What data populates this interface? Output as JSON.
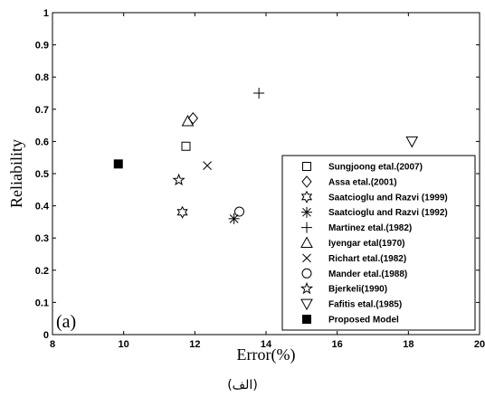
{
  "chart_data": {
    "type": "scatter",
    "panel_label": "(a)",
    "xlabel": "Error(%)",
    "ylabel": "Reliability",
    "xlim": [
      8,
      20
    ],
    "ylim": [
      0,
      1
    ],
    "xticks": [
      8,
      10,
      12,
      14,
      16,
      18,
      20
    ],
    "xtick_labels": [
      "8",
      "10",
      "12",
      "14",
      "16",
      "18",
      "20"
    ],
    "yticks": [
      0,
      0.1,
      0.2,
      0.3,
      0.4,
      0.5,
      0.6,
      0.7,
      0.8,
      0.9,
      1
    ],
    "ytick_labels": [
      "0",
      "0.1",
      "0.2",
      "0.3",
      "0.4",
      "0.5",
      "0.6",
      "0.7",
      "0.8",
      "0.9",
      "1"
    ],
    "grid": false,
    "legend_position": "bottom-right",
    "series": [
      {
        "name": "Sungjoong etal.(2007)",
        "marker": "square",
        "x": [
          11.75
        ],
        "y": [
          0.585
        ]
      },
      {
        "name": "Assa etal.(2001)",
        "marker": "diamond",
        "x": [
          11.95
        ],
        "y": [
          0.672
        ]
      },
      {
        "name": "Saatcioglu and Razvi (1999)",
        "marker": "hexagram",
        "x": [
          11.65
        ],
        "y": [
          0.38
        ]
      },
      {
        "name": "Saatcioglu and Razvi (1992)",
        "marker": "asterisk",
        "x": [
          13.1
        ],
        "y": [
          0.36
        ]
      },
      {
        "name": "Martinez etal.(1982)",
        "marker": "plus",
        "x": [
          13.8
        ],
        "y": [
          0.75
        ]
      },
      {
        "name": "Iyengar etal(1970)",
        "marker": "triangle-up",
        "x": [
          11.8
        ],
        "y": [
          0.663
        ]
      },
      {
        "name": "Richart etal.(1982)",
        "marker": "x",
        "x": [
          12.35
        ],
        "y": [
          0.525
        ]
      },
      {
        "name": "Mander etal.(1988)",
        "marker": "circle",
        "x": [
          13.25
        ],
        "y": [
          0.382
        ]
      },
      {
        "name": "Bjerkeli(1990)",
        "marker": "pentagram",
        "x": [
          11.55
        ],
        "y": [
          0.48
        ]
      },
      {
        "name": "Fafitis etal.(1985)",
        "marker": "triangle-down",
        "x": [
          18.1
        ],
        "y": [
          0.6
        ]
      },
      {
        "name": "Proposed Model",
        "marker": "filled-square",
        "x": [
          9.85
        ],
        "y": [
          0.53
        ]
      }
    ]
  },
  "caption": "(الف)"
}
